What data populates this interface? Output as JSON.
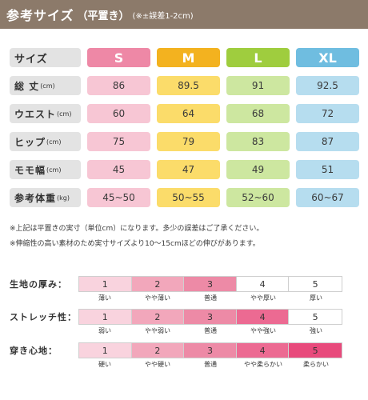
{
  "banner": {
    "title": "参考サイズ",
    "subtitle": "（平置き）",
    "note": "(※±誤差1-2cm)"
  },
  "colors": {
    "banner": "#8c7a6a",
    "label_bg": "#e3e3e3",
    "S_header": "#ee88a6",
    "S_cell": "#f7c6d4",
    "M_header": "#f3b21f",
    "M_cell": "#fbdc6a",
    "L_header": "#9fcd3e",
    "L_cell": "#cde7a0",
    "XL_header": "#6fbde0",
    "XL_cell": "#b6ddef",
    "scale_colors": [
      "#f9d3de",
      "#f2a7bb",
      "#ed8aa6",
      "#ec6a92",
      "#e84a7c"
    ]
  },
  "table": {
    "header_label": "サイズ",
    "sizes": [
      "S",
      "M",
      "L",
      "XL"
    ],
    "rows": [
      {
        "label": "総 丈",
        "unit": "(cm)",
        "values": [
          "86",
          "89.5",
          "91",
          "92.5"
        ]
      },
      {
        "label": "ウエスト",
        "unit": "(cm)",
        "values": [
          "60",
          "64",
          "68",
          "72"
        ]
      },
      {
        "label": "ヒップ",
        "unit": "(cm)",
        "values": [
          "75",
          "79",
          "83",
          "87"
        ]
      },
      {
        "label": "モモ幅",
        "unit": "(cm)",
        "values": [
          "45",
          "47",
          "49",
          "51"
        ]
      },
      {
        "label": "参考体重",
        "unit": "(kg)",
        "values": [
          "45~50",
          "50~55",
          "52~60",
          "60~67"
        ]
      }
    ]
  },
  "notes": [
    "※上記は平置きの実寸（単位cm）になります。多少の誤差はご了承ください。",
    "※伸縮性の高い素材のため実寸サイズより10～15cmほどの伸びがあります。"
  ],
  "scales": [
    {
      "label": "生地の厚み：",
      "numbers": [
        "1",
        "2",
        "3",
        "4",
        "5"
      ],
      "selected_level": 3,
      "captions": [
        "薄い",
        "やや薄い",
        "普通",
        "やや厚い",
        "厚い"
      ]
    },
    {
      "label": "ストレッチ性：",
      "numbers": [
        "1",
        "2",
        "3",
        "4",
        "5"
      ],
      "selected_level": 4,
      "captions": [
        "弱い",
        "やや弱い",
        "普通",
        "やや強い",
        "強い"
      ]
    },
    {
      "label": "穿き心地：",
      "numbers": [
        "1",
        "2",
        "3",
        "4",
        "5"
      ],
      "selected_level": 5,
      "captions": [
        "硬い",
        "やや硬い",
        "普通",
        "やや柔らかい",
        "柔らかい"
      ]
    }
  ]
}
